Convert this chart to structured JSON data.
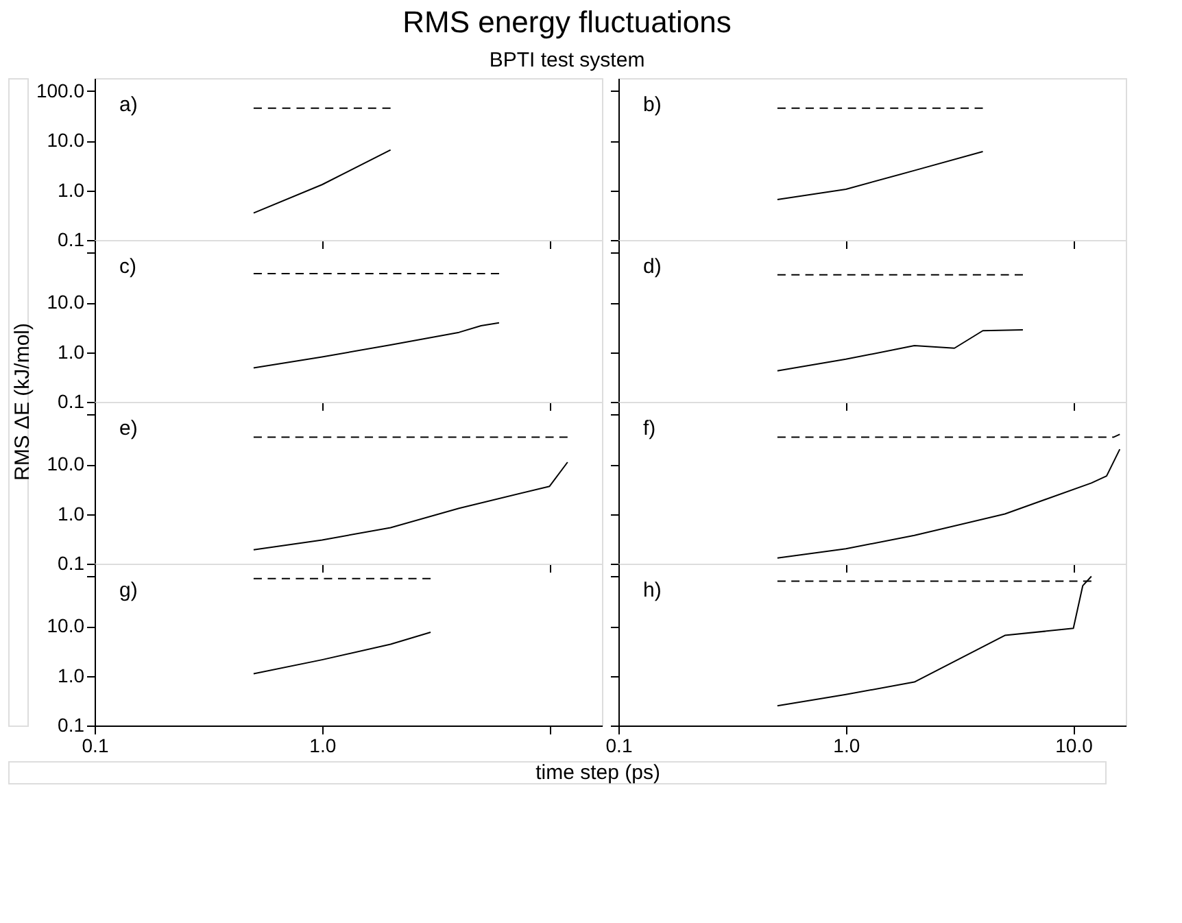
{
  "chart_data": [
    {
      "type": "line",
      "title": "RMS energy fluctuations",
      "subtitle": "BPTI test system",
      "ylabel": "RMS ΔE (kJ/mol)",
      "xlabel": "time step (ps)",
      "log": "xy",
      "grid": false,
      "tick_labels": "y",
      "annotations": [
        "a)"
      ],
      "xlim": [
        0.1,
        17
      ],
      "ylim": [
        0.1,
        180
      ],
      "xticks": [
        0.1,
        1,
        10
      ],
      "yticks": [
        {
          "value": 0.1,
          "label": "0.1"
        },
        {
          "value": 1,
          "label": "1.0"
        },
        {
          "value": 10,
          "label": "10.0"
        },
        {
          "value": 100,
          "label": "100.0"
        }
      ],
      "series": [
        {
          "color": "#000000",
          "line_style": "solid",
          "x": [
            0.5,
            1,
            2
          ],
          "values": [
            0.35,
            1.3,
            6.5
          ]
        },
        {
          "color": "#000000",
          "line_style": "dashed",
          "x": [
            0.5,
            2
          ],
          "values": [
            45,
            45
          ]
        }
      ]
    },
    {
      "type": "line",
      "log": "xy",
      "grid": false,
      "tick_labels": false,
      "annotations": [
        "b)"
      ],
      "xlim": [
        0.1,
        17
      ],
      "ylim": [
        0.1,
        180
      ],
      "xticks": [
        0.1,
        1,
        10
      ],
      "yticks": [
        0.1,
        1,
        10,
        100
      ],
      "series": [
        {
          "color": "#000000",
          "line_style": "solid",
          "x": [
            0.5,
            1,
            2,
            4
          ],
          "values": [
            0.65,
            1.05,
            2.5,
            6.0
          ]
        },
        {
          "color": "#000000",
          "line_style": "dashed",
          "x": [
            0.5,
            4
          ],
          "values": [
            45,
            45
          ]
        }
      ]
    },
    {
      "type": "line",
      "log": "xy",
      "grid": false,
      "tick_labels": "y",
      "annotations": [
        "c)"
      ],
      "xlim": [
        0.1,
        17
      ],
      "ylim": [
        0.1,
        180
      ],
      "xticks": [
        0.1,
        1,
        10
      ],
      "yticks": [
        {
          "value": 0.1,
          "label": "0.1"
        },
        {
          "value": 1,
          "label": "1.0"
        },
        {
          "value": 10,
          "label": "10.0"
        },
        {
          "value": 100,
          "label": null
        }
      ],
      "series": [
        {
          "color": "#000000",
          "line_style": "solid",
          "x": [
            0.5,
            1,
            2,
            4,
            5,
            6
          ],
          "values": [
            0.48,
            0.8,
            1.4,
            2.5,
            3.4,
            3.9
          ]
        },
        {
          "color": "#000000",
          "line_style": "dashed",
          "x": [
            0.5,
            6
          ],
          "values": [
            38,
            38
          ]
        }
      ]
    },
    {
      "type": "line",
      "log": "xy",
      "grid": false,
      "tick_labels": false,
      "annotations": [
        "d)"
      ],
      "xlim": [
        0.1,
        17
      ],
      "ylim": [
        0.1,
        180
      ],
      "xticks": [
        0.1,
        1,
        10
      ],
      "yticks": [
        0.1,
        1,
        10,
        100
      ],
      "series": [
        {
          "color": "#000000",
          "line_style": "solid",
          "x": [
            0.5,
            1,
            2,
            3,
            4,
            6
          ],
          "values": [
            0.42,
            0.72,
            1.35,
            1.2,
            2.7,
            2.8
          ]
        },
        {
          "color": "#000000",
          "line_style": "dashed",
          "x": [
            0.5,
            6
          ],
          "values": [
            36,
            36
          ]
        }
      ]
    },
    {
      "type": "line",
      "log": "xy",
      "grid": false,
      "tick_labels": "y",
      "annotations": [
        "e)"
      ],
      "xlim": [
        0.1,
        17
      ],
      "ylim": [
        0.1,
        180
      ],
      "xticks": [
        0.1,
        1,
        10
      ],
      "yticks": [
        {
          "value": 0.1,
          "label": "0.1"
        },
        {
          "value": 1,
          "label": "1.0"
        },
        {
          "value": 10,
          "label": "10.0"
        },
        {
          "value": 100,
          "label": null
        }
      ],
      "series": [
        {
          "color": "#000000",
          "line_style": "solid",
          "x": [
            0.5,
            1,
            2,
            4,
            10,
            12
          ],
          "values": [
            0.19,
            0.3,
            0.53,
            1.3,
            3.6,
            11
          ]
        },
        {
          "color": "#000000",
          "line_style": "dashed",
          "x": [
            0.5,
            12
          ],
          "values": [
            35,
            35
          ]
        }
      ]
    },
    {
      "type": "line",
      "log": "xy",
      "grid": false,
      "tick_labels": false,
      "annotations": [
        "f)"
      ],
      "xlim": [
        0.1,
        17
      ],
      "ylim": [
        0.1,
        180
      ],
      "xticks": [
        0.1,
        1,
        10
      ],
      "yticks": [
        0.1,
        1,
        10,
        100
      ],
      "series": [
        {
          "color": "#000000",
          "line_style": "solid",
          "x": [
            0.5,
            1,
            2,
            5,
            12,
            14,
            16
          ],
          "values": [
            0.13,
            0.2,
            0.37,
            1.0,
            4.2,
            5.8,
            20
          ]
        },
        {
          "color": "#000000",
          "line_style": "dashed",
          "x": [
            0.5,
            15,
            16
          ],
          "values": [
            35,
            35,
            40
          ]
        }
      ]
    },
    {
      "type": "line",
      "log": "xy",
      "grid": false,
      "annotations": [
        "g)"
      ],
      "xlim": [
        0.1,
        17
      ],
      "ylim": [
        0.1,
        180
      ],
      "xticks": [
        {
          "value": 0.1,
          "label": "0.1"
        },
        {
          "value": 1,
          "label": "1.0"
        },
        {
          "value": 10,
          "label": null
        }
      ],
      "yticks": [
        {
          "value": 0.1,
          "label": "0.1"
        },
        {
          "value": 1,
          "label": "1.0"
        },
        {
          "value": 10,
          "label": "10.0"
        },
        {
          "value": 100,
          "label": null
        }
      ],
      "series": [
        {
          "color": "#000000",
          "line_style": "solid",
          "x": [
            0.5,
            1,
            2,
            3
          ],
          "values": [
            1.1,
            2.1,
            4.3,
            7.5
          ]
        },
        {
          "color": "#000000",
          "line_style": "dashed",
          "x": [
            0.5,
            3
          ],
          "values": [
            90,
            90
          ]
        }
      ]
    },
    {
      "type": "line",
      "log": "xy",
      "grid": false,
      "tick_labels": "x",
      "annotations": [
        "h)"
      ],
      "xlim": [
        0.1,
        17
      ],
      "ylim": [
        0.1,
        180
      ],
      "xticks": [
        {
          "value": 0.1,
          "label": "0.1"
        },
        {
          "value": 1,
          "label": "1.0"
        },
        {
          "value": 10,
          "label": "10.0"
        }
      ],
      "yticks": [
        0.1,
        1,
        10,
        100
      ],
      "series": [
        {
          "color": "#000000",
          "line_style": "solid",
          "x": [
            0.5,
            1,
            2,
            5,
            10,
            11,
            12
          ],
          "values": [
            0.25,
            0.42,
            0.75,
            6.5,
            9,
            65,
            100
          ]
        },
        {
          "color": "#000000",
          "line_style": "dashed",
          "x": [
            0.5,
            12
          ],
          "values": [
            80,
            80
          ]
        }
      ]
    }
  ]
}
